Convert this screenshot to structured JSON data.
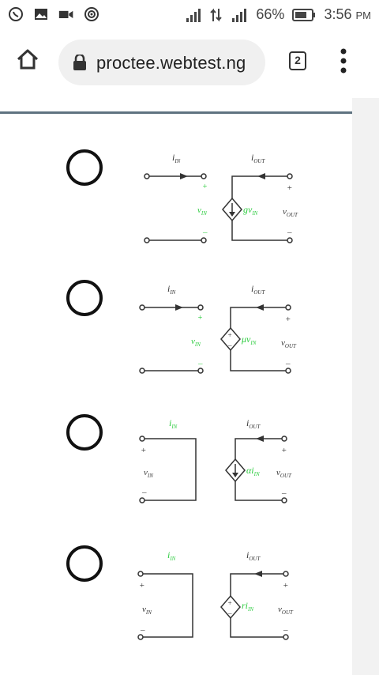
{
  "status_bar": {
    "battery": "66%",
    "time": "3:56",
    "ampm": "PM",
    "icons": [
      "whatsapp-icon",
      "gallery-icon",
      "video-icon",
      "hotspot-icon",
      "signal-h-icon",
      "data-arrows-icon",
      "signal-hplus-icon",
      "battery-icon"
    ]
  },
  "browser": {
    "url": "proctee.webtest.ng",
    "tab_count": "2"
  },
  "options": [
    {
      "label_in": "i",
      "sub_in": "IN",
      "label_out": "i",
      "sub_out": "OUT",
      "vin": "v",
      "vin_sub": "IN",
      "src_main": "gv",
      "src_sub": "IN",
      "vout": "v",
      "vout_sub": "OUT",
      "source": "current"
    },
    {
      "label_in": "i",
      "sub_in": "IN",
      "label_out": "i",
      "sub_out": "OUT",
      "vin": "v",
      "vin_sub": "IN",
      "src_main": "μv",
      "src_sub": "IN",
      "vout": "v",
      "vout_sub": "OUT",
      "source": "voltage"
    },
    {
      "label_in": "i",
      "sub_in": "IN",
      "label_out": "i",
      "sub_out": "OUT",
      "vin": "v",
      "vin_sub": "IN",
      "src_main": "αi",
      "src_sub": "IN",
      "vout": "v",
      "vout_sub": "OUT",
      "source": "current"
    },
    {
      "label_in": "i",
      "sub_in": "IN",
      "label_out": "i",
      "sub_out": "OUT",
      "vin": "v",
      "vin_sub": "IN",
      "src_main": "ri",
      "src_sub": "IN",
      "vout": "v",
      "vout_sub": "OUT",
      "source": "voltage"
    }
  ],
  "colors": {
    "green": "#2ecc40",
    "accent_line": "#5f7380"
  }
}
